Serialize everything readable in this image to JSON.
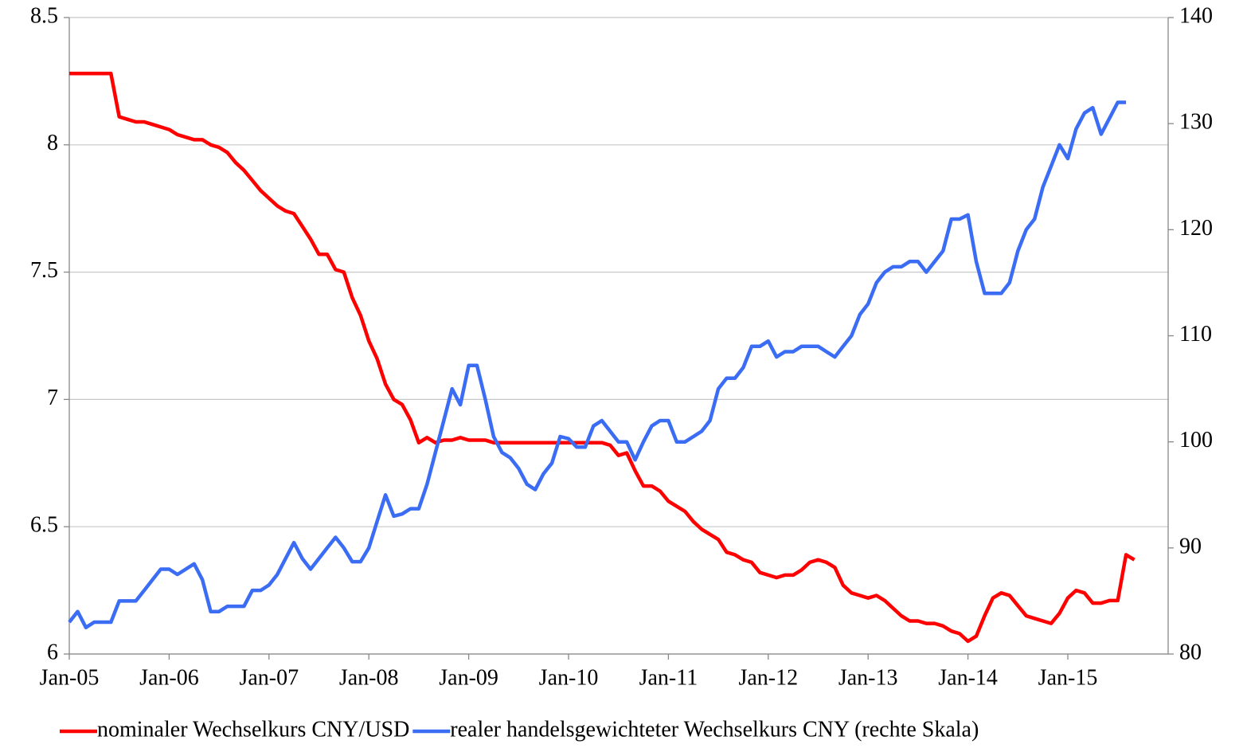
{
  "chart_data": {
    "type": "line",
    "categories": [
      "Jan-05",
      null,
      null,
      null,
      null,
      null,
      null,
      null,
      null,
      null,
      null,
      null,
      "Jan-06",
      null,
      null,
      null,
      null,
      null,
      null,
      null,
      null,
      null,
      null,
      null,
      "Jan-07",
      null,
      null,
      null,
      null,
      null,
      null,
      null,
      null,
      null,
      null,
      null,
      "Jan-08",
      null,
      null,
      null,
      null,
      null,
      null,
      null,
      null,
      null,
      null,
      null,
      "Jan-09",
      null,
      null,
      null,
      null,
      null,
      null,
      null,
      null,
      null,
      null,
      null,
      "Jan-10",
      null,
      null,
      null,
      null,
      null,
      null,
      null,
      null,
      null,
      null,
      null,
      "Jan-11",
      null,
      null,
      null,
      null,
      null,
      null,
      null,
      null,
      null,
      null,
      null,
      "Jan-12",
      null,
      null,
      null,
      null,
      null,
      null,
      null,
      null,
      null,
      null,
      null,
      "Jan-13",
      null,
      null,
      null,
      null,
      null,
      null,
      null,
      null,
      null,
      null,
      null,
      "Jan-14",
      null,
      null,
      null,
      null,
      null,
      null,
      null,
      null,
      null,
      null,
      null,
      "Jan-15",
      null,
      null,
      null,
      null,
      null,
      null,
      null,
      null
    ],
    "series": [
      {
        "name": "nominaler Wechselkurs CNY/USD",
        "color": "#ff0000",
        "values": [
          8.28,
          8.28,
          8.28,
          8.28,
          8.28,
          8.28,
          8.11,
          8.1,
          8.09,
          8.09,
          8.08,
          8.07,
          8.06,
          8.04,
          8.03,
          8.02,
          8.02,
          8.0,
          7.99,
          7.97,
          7.93,
          7.9,
          7.86,
          7.82,
          7.79,
          7.76,
          7.74,
          7.73,
          7.68,
          7.63,
          7.57,
          7.57,
          7.51,
          7.5,
          7.4,
          7.33,
          7.23,
          7.16,
          7.06,
          7.0,
          6.98,
          6.92,
          6.83,
          6.85,
          6.83,
          6.84,
          6.84,
          6.85,
          6.84,
          6.84,
          6.84,
          6.83,
          6.83,
          6.83,
          6.83,
          6.83,
          6.83,
          6.83,
          6.83,
          6.83,
          6.83,
          6.83,
          6.83,
          6.83,
          6.83,
          6.82,
          6.78,
          6.79,
          6.72,
          6.66,
          6.66,
          6.64,
          6.6,
          6.58,
          6.56,
          6.52,
          6.49,
          6.47,
          6.45,
          6.4,
          6.39,
          6.37,
          6.36,
          6.32,
          6.31,
          6.3,
          6.31,
          6.31,
          6.33,
          6.36,
          6.37,
          6.36,
          6.34,
          6.27,
          6.24,
          6.23,
          6.22,
          6.23,
          6.21,
          6.18,
          6.15,
          6.13,
          6.13,
          6.12,
          6.12,
          6.11,
          6.09,
          6.08,
          6.05,
          6.07,
          6.15,
          6.22,
          6.24,
          6.23,
          6.19,
          6.15,
          6.14,
          6.13,
          6.12,
          6.16,
          6.22,
          6.25,
          6.24,
          6.2,
          6.2,
          6.21,
          6.21,
          6.39,
          6.37
        ]
      },
      {
        "name": "realer handelsgewichteter Wechselkurs CNY (rechte Skala)",
        "color": "#3b6cf4",
        "axis": "y2",
        "values": [
          83,
          84,
          82.5,
          83,
          83,
          83,
          85,
          85,
          85,
          86,
          87,
          88,
          88,
          87.5,
          88,
          88.5,
          87,
          84,
          84,
          84.5,
          84.5,
          84.5,
          86,
          86,
          86.5,
          87.5,
          89,
          90.5,
          89,
          88,
          89,
          90,
          91,
          90,
          88.7,
          88.7,
          90,
          92.5,
          95,
          93,
          93.2,
          93.7,
          93.7,
          96,
          99,
          102,
          105,
          103.5,
          107.2,
          107.2,
          104,
          100.5,
          99,
          98.5,
          97.5,
          96,
          95.5,
          97,
          98,
          100.5,
          100.3,
          99.5,
          99.5,
          101.5,
          102,
          101,
          100,
          100,
          98.3,
          100,
          101.5,
          102,
          102,
          100,
          100,
          100.5,
          101,
          102,
          105,
          106,
          106,
          107,
          109,
          109,
          109.5,
          108,
          108.5,
          108.5,
          109,
          109,
          109,
          108.5,
          108,
          109,
          110,
          112,
          113,
          115,
          116,
          116.5,
          116.5,
          117,
          117,
          116,
          117,
          118,
          121,
          121,
          121.4,
          117,
          114,
          114,
          114,
          115,
          118,
          120,
          121,
          124,
          126,
          128,
          126.7,
          129.5,
          131,
          131.5,
          129,
          130.5,
          132,
          132,
          null
        ]
      }
    ],
    "ylim": [
      6,
      8.5
    ],
    "yticks": [
      6,
      6.5,
      7,
      7.5,
      8,
      8.5
    ],
    "y2lim": [
      80,
      140
    ],
    "y2ticks": [
      80,
      90,
      100,
      110,
      120,
      130,
      140
    ],
    "grid": true,
    "legend": "bottom"
  }
}
